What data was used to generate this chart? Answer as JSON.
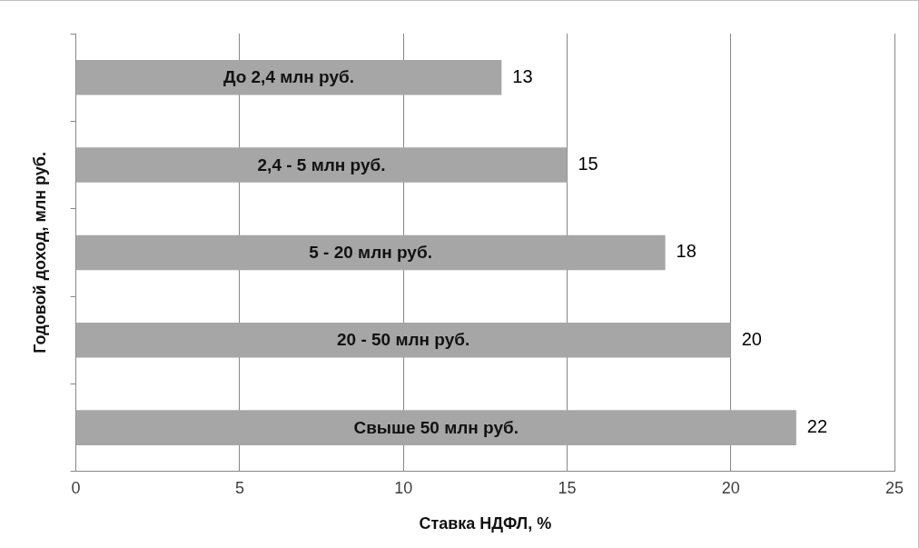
{
  "chart_data": {
    "type": "bar",
    "orientation": "horizontal",
    "xlabel": "Ставка НДФЛ, %",
    "ylabel": "Годовой доход, млн руб.",
    "categories": [
      "До 2,4 млн руб.",
      "2,4 - 5 млн руб.",
      "5 - 20 млн руб.",
      "20 - 50 млн руб.",
      "Свыше 50 млн руб."
    ],
    "values": [
      13,
      15,
      18,
      20,
      22
    ],
    "color": "#a6a6a6",
    "xlim": [
      0,
      25
    ],
    "xticks": [
      0,
      5,
      10,
      15,
      20,
      25
    ],
    "grid": "x",
    "legend": false,
    "data_labels": true
  }
}
